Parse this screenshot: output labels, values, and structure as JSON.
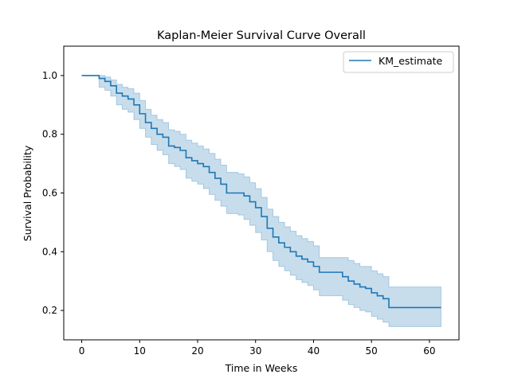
{
  "chart_data": {
    "type": "line",
    "title": "Kaplan-Meier Survival Curve Overall",
    "xlabel": "Time in Weeks",
    "ylabel": "Survival Probability",
    "xlim": [
      -3.1,
      65.1
    ],
    "ylim": [
      0.1,
      1.1
    ],
    "x_ticks": [
      0,
      10,
      20,
      30,
      40,
      50,
      60
    ],
    "y_ticks": [
      0.2,
      0.4,
      0.6,
      0.8,
      1.0
    ],
    "x_tick_labels": [
      "0",
      "10",
      "20",
      "30",
      "40",
      "50",
      "60"
    ],
    "y_tick_labels": [
      "0.2",
      "0.4",
      "0.6",
      "0.8",
      "1.0"
    ],
    "legend": {
      "position": "top-right",
      "entries": [
        "KM_estimate"
      ]
    },
    "colors": {
      "line": "#1f77b4",
      "band": "#1f77b4"
    },
    "series": [
      {
        "name": "KM_estimate",
        "step": "post",
        "times": [
          0,
          3,
          4,
          5,
          6,
          7,
          8,
          9,
          10,
          11,
          12,
          13,
          14,
          15,
          16,
          17,
          18,
          19,
          20,
          21,
          22,
          23,
          24,
          25,
          27,
          28,
          29,
          30,
          31,
          32,
          33,
          34,
          35,
          36,
          37,
          38,
          39,
          40,
          41,
          45,
          46,
          47,
          48,
          49,
          50,
          51,
          52,
          53,
          62
        ],
        "estimate": [
          1.0,
          0.99,
          0.98,
          0.965,
          0.94,
          0.93,
          0.92,
          0.9,
          0.87,
          0.84,
          0.82,
          0.8,
          0.79,
          0.76,
          0.755,
          0.745,
          0.72,
          0.71,
          0.7,
          0.69,
          0.67,
          0.65,
          0.63,
          0.6,
          0.6,
          0.59,
          0.57,
          0.55,
          0.52,
          0.48,
          0.45,
          0.43,
          0.415,
          0.4,
          0.385,
          0.375,
          0.365,
          0.35,
          0.33,
          0.315,
          0.3,
          0.29,
          0.28,
          0.275,
          0.26,
          0.25,
          0.24,
          0.21,
          0.21
        ],
        "ci_lower": [
          1.0,
          0.96,
          0.95,
          0.93,
          0.9,
          0.885,
          0.875,
          0.85,
          0.82,
          0.79,
          0.765,
          0.745,
          0.73,
          0.7,
          0.69,
          0.68,
          0.65,
          0.64,
          0.63,
          0.615,
          0.595,
          0.575,
          0.555,
          0.53,
          0.525,
          0.51,
          0.49,
          0.465,
          0.44,
          0.4,
          0.37,
          0.35,
          0.335,
          0.32,
          0.305,
          0.295,
          0.285,
          0.27,
          0.25,
          0.235,
          0.22,
          0.21,
          0.2,
          0.195,
          0.18,
          0.17,
          0.16,
          0.145,
          0.145
        ],
        "ci_upper": [
          1.0,
          1.0,
          0.995,
          0.985,
          0.97,
          0.96,
          0.955,
          0.94,
          0.915,
          0.885,
          0.865,
          0.85,
          0.84,
          0.815,
          0.81,
          0.8,
          0.78,
          0.77,
          0.76,
          0.75,
          0.735,
          0.715,
          0.695,
          0.67,
          0.665,
          0.655,
          0.635,
          0.615,
          0.585,
          0.545,
          0.52,
          0.5,
          0.485,
          0.47,
          0.455,
          0.445,
          0.435,
          0.42,
          0.38,
          0.38,
          0.37,
          0.36,
          0.35,
          0.35,
          0.335,
          0.325,
          0.315,
          0.28,
          0.28
        ]
      }
    ]
  }
}
